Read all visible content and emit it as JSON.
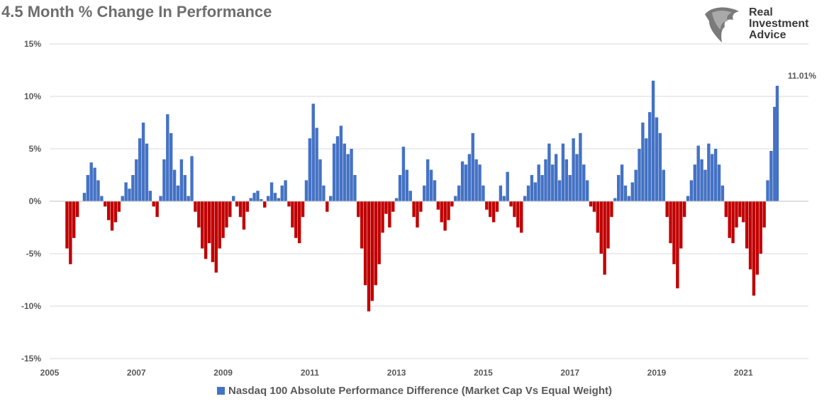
{
  "title": "4.5 Month % Change In Performance",
  "logo": {
    "line1": "Real",
    "line2": "Investment",
    "line3": "Advice"
  },
  "chart_data": {
    "type": "bar",
    "title": "4.5 Month % Change In Performance",
    "xlabel": "",
    "ylabel": "",
    "ylim": [
      -15,
      15
    ],
    "xlim": [
      2005.0,
      2022.5
    ],
    "y_ticks": [
      "-15%",
      "-10%",
      "-5%",
      "0%",
      "5%",
      "10%",
      "15%"
    ],
    "x_ticks": [
      "2005",
      "2007",
      "2009",
      "2011",
      "2013",
      "2015",
      "2017",
      "2019",
      "2021"
    ],
    "positive_color": "#4472c4",
    "negative_color": "#c00000",
    "legend": {
      "label": "Nasdaq 100 Absolute Performance Difference (Market Cap Vs Equal Weight)",
      "position": "bottom"
    },
    "annotation": {
      "text": "11.01%",
      "x": 2022.45,
      "y": 11.01
    },
    "series": [
      {
        "name": "Nasdaq 100 Absolute Performance Difference (Market Cap Vs Equal Weight)",
        "points": [
          [
            2005.4,
            -4.5
          ],
          [
            2005.48,
            -6.0
          ],
          [
            2005.56,
            -3.5
          ],
          [
            2005.64,
            -1.5
          ],
          [
            2005.72,
            0.0
          ],
          [
            2005.8,
            0.8
          ],
          [
            2005.88,
            2.5
          ],
          [
            2005.96,
            3.7
          ],
          [
            2006.04,
            3.2
          ],
          [
            2006.12,
            2.0
          ],
          [
            2006.2,
            0.5
          ],
          [
            2006.28,
            -0.5
          ],
          [
            2006.36,
            -1.8
          ],
          [
            2006.44,
            -2.8
          ],
          [
            2006.52,
            -2.0
          ],
          [
            2006.6,
            -1.0
          ],
          [
            2006.68,
            0.5
          ],
          [
            2006.76,
            1.8
          ],
          [
            2006.84,
            1.2
          ],
          [
            2006.92,
            2.5
          ],
          [
            2007.0,
            4.0
          ],
          [
            2007.08,
            6.0
          ],
          [
            2007.16,
            7.5
          ],
          [
            2007.24,
            5.5
          ],
          [
            2007.32,
            1.0
          ],
          [
            2007.4,
            -0.5
          ],
          [
            2007.48,
            -1.5
          ],
          [
            2007.56,
            0.5
          ],
          [
            2007.64,
            4.0
          ],
          [
            2007.72,
            8.3
          ],
          [
            2007.8,
            6.5
          ],
          [
            2007.88,
            3.0
          ],
          [
            2007.96,
            1.5
          ],
          [
            2008.04,
            4.0
          ],
          [
            2008.12,
            2.5
          ],
          [
            2008.2,
            0.5
          ],
          [
            2008.28,
            4.3
          ],
          [
            2008.36,
            -1.0
          ],
          [
            2008.44,
            -2.5
          ],
          [
            2008.52,
            -4.5
          ],
          [
            2008.6,
            -5.5
          ],
          [
            2008.68,
            -4.0
          ],
          [
            2008.76,
            -5.8
          ],
          [
            2008.84,
            -6.8
          ],
          [
            2008.92,
            -4.5
          ],
          [
            2009.0,
            -3.5
          ],
          [
            2009.08,
            -2.5
          ],
          [
            2009.16,
            -1.5
          ],
          [
            2009.24,
            0.5
          ],
          [
            2009.32,
            -0.5
          ],
          [
            2009.4,
            -1.5
          ],
          [
            2009.48,
            -2.7
          ],
          [
            2009.56,
            -1.0
          ],
          [
            2009.64,
            0.3
          ],
          [
            2009.72,
            0.8
          ],
          [
            2009.8,
            1.0
          ],
          [
            2009.88,
            0.2
          ],
          [
            2009.96,
            -0.6
          ],
          [
            2010.04,
            0.5
          ],
          [
            2010.12,
            1.8
          ],
          [
            2010.2,
            0.8
          ],
          [
            2010.28,
            0.3
          ],
          [
            2010.36,
            1.5
          ],
          [
            2010.44,
            2.0
          ],
          [
            2010.52,
            -0.5
          ],
          [
            2010.6,
            -2.5
          ],
          [
            2010.68,
            -3.5
          ],
          [
            2010.76,
            -4.0
          ],
          [
            2010.84,
            -1.5
          ],
          [
            2010.92,
            2.0
          ],
          [
            2011.0,
            6.0
          ],
          [
            2011.08,
            9.3
          ],
          [
            2011.16,
            7.0
          ],
          [
            2011.24,
            4.0
          ],
          [
            2011.32,
            1.5
          ],
          [
            2011.4,
            -1.0
          ],
          [
            2011.48,
            0.5
          ],
          [
            2011.56,
            5.5
          ],
          [
            2011.64,
            6.2
          ],
          [
            2011.72,
            7.2
          ],
          [
            2011.8,
            5.5
          ],
          [
            2011.88,
            4.5
          ],
          [
            2011.96,
            5.0
          ],
          [
            2012.04,
            2.5
          ],
          [
            2012.12,
            -1.5
          ],
          [
            2012.2,
            -4.5
          ],
          [
            2012.28,
            -8.0
          ],
          [
            2012.36,
            -10.5
          ],
          [
            2012.44,
            -9.5
          ],
          [
            2012.52,
            -8.0
          ],
          [
            2012.6,
            -6.0
          ],
          [
            2012.68,
            -3.0
          ],
          [
            2012.76,
            -1.2
          ],
          [
            2012.84,
            -2.5
          ],
          [
            2012.92,
            -1.0
          ],
          [
            2013.0,
            0.3
          ],
          [
            2013.08,
            2.5
          ],
          [
            2013.16,
            5.2
          ],
          [
            2013.24,
            3.0
          ],
          [
            2013.32,
            1.0
          ],
          [
            2013.4,
            -1.5
          ],
          [
            2013.48,
            -2.5
          ],
          [
            2013.56,
            -1.0
          ],
          [
            2013.64,
            1.5
          ],
          [
            2013.72,
            4.0
          ],
          [
            2013.8,
            3.0
          ],
          [
            2013.88,
            2.0
          ],
          [
            2013.96,
            -0.8
          ],
          [
            2014.04,
            -2.0
          ],
          [
            2014.12,
            -2.8
          ],
          [
            2014.2,
            -1.8
          ],
          [
            2014.28,
            -0.5
          ],
          [
            2014.36,
            0.5
          ],
          [
            2014.44,
            1.5
          ],
          [
            2014.52,
            3.8
          ],
          [
            2014.6,
            3.5
          ],
          [
            2014.68,
            4.5
          ],
          [
            2014.76,
            6.5
          ],
          [
            2014.84,
            4.0
          ],
          [
            2014.92,
            3.5
          ],
          [
            2015.0,
            1.5
          ],
          [
            2015.08,
            -0.8
          ],
          [
            2015.16,
            -1.5
          ],
          [
            2015.24,
            -2.0
          ],
          [
            2015.32,
            -1.0
          ],
          [
            2015.4,
            1.5
          ],
          [
            2015.48,
            0.5
          ],
          [
            2015.56,
            2.8
          ],
          [
            2015.64,
            -0.5
          ],
          [
            2015.72,
            -1.5
          ],
          [
            2015.8,
            -2.5
          ],
          [
            2015.88,
            -3.0
          ],
          [
            2015.96,
            0.5
          ],
          [
            2016.04,
            1.5
          ],
          [
            2016.12,
            2.5
          ],
          [
            2016.2,
            1.8
          ],
          [
            2016.28,
            3.5
          ],
          [
            2016.36,
            2.5
          ],
          [
            2016.44,
            4.0
          ],
          [
            2016.52,
            5.5
          ],
          [
            2016.6,
            3.5
          ],
          [
            2016.68,
            4.5
          ],
          [
            2016.76,
            2.0
          ],
          [
            2016.84,
            5.5
          ],
          [
            2016.92,
            4.0
          ],
          [
            2017.0,
            2.5
          ],
          [
            2017.08,
            6.0
          ],
          [
            2017.16,
            4.5
          ],
          [
            2017.24,
            6.5
          ],
          [
            2017.32,
            3.5
          ],
          [
            2017.4,
            2.0
          ],
          [
            2017.48,
            -0.5
          ],
          [
            2017.56,
            -1.0
          ],
          [
            2017.64,
            -3.0
          ],
          [
            2017.72,
            -5.0
          ],
          [
            2017.8,
            -7.0
          ],
          [
            2017.88,
            -4.5
          ],
          [
            2017.96,
            -1.5
          ],
          [
            2018.04,
            0.3
          ],
          [
            2018.12,
            2.5
          ],
          [
            2018.2,
            3.5
          ],
          [
            2018.28,
            1.5
          ],
          [
            2018.36,
            0.5
          ],
          [
            2018.44,
            1.8
          ],
          [
            2018.52,
            3.0
          ],
          [
            2018.6,
            5.0
          ],
          [
            2018.68,
            7.5
          ],
          [
            2018.76,
            6.0
          ],
          [
            2018.84,
            8.5
          ],
          [
            2018.92,
            11.5
          ],
          [
            2019.0,
            8.0
          ],
          [
            2019.08,
            6.5
          ],
          [
            2019.16,
            3.0
          ],
          [
            2019.24,
            -1.5
          ],
          [
            2019.32,
            -4.0
          ],
          [
            2019.4,
            -6.0
          ],
          [
            2019.48,
            -8.3
          ],
          [
            2019.56,
            -4.5
          ],
          [
            2019.64,
            -1.5
          ],
          [
            2019.72,
            0.5
          ],
          [
            2019.8,
            2.0
          ],
          [
            2019.88,
            3.5
          ],
          [
            2019.96,
            5.3
          ],
          [
            2020.04,
            4.0
          ],
          [
            2020.12,
            3.0
          ],
          [
            2020.2,
            5.5
          ],
          [
            2020.28,
            4.5
          ],
          [
            2020.36,
            5.0
          ],
          [
            2020.44,
            3.5
          ],
          [
            2020.52,
            1.5
          ],
          [
            2020.6,
            -1.5
          ],
          [
            2020.68,
            -3.5
          ],
          [
            2020.76,
            -4.0
          ],
          [
            2020.84,
            -2.5
          ],
          [
            2020.92,
            -1.5
          ],
          [
            2021.0,
            -2.0
          ],
          [
            2021.08,
            -4.5
          ],
          [
            2021.16,
            -6.5
          ],
          [
            2021.24,
            -9.0
          ],
          [
            2021.32,
            -7.0
          ],
          [
            2021.4,
            -5.0
          ],
          [
            2021.48,
            -2.5
          ],
          [
            2021.56,
            2.0
          ],
          [
            2021.64,
            4.8
          ],
          [
            2021.72,
            9.0
          ],
          [
            2021.78,
            11.01
          ]
        ]
      }
    ]
  }
}
